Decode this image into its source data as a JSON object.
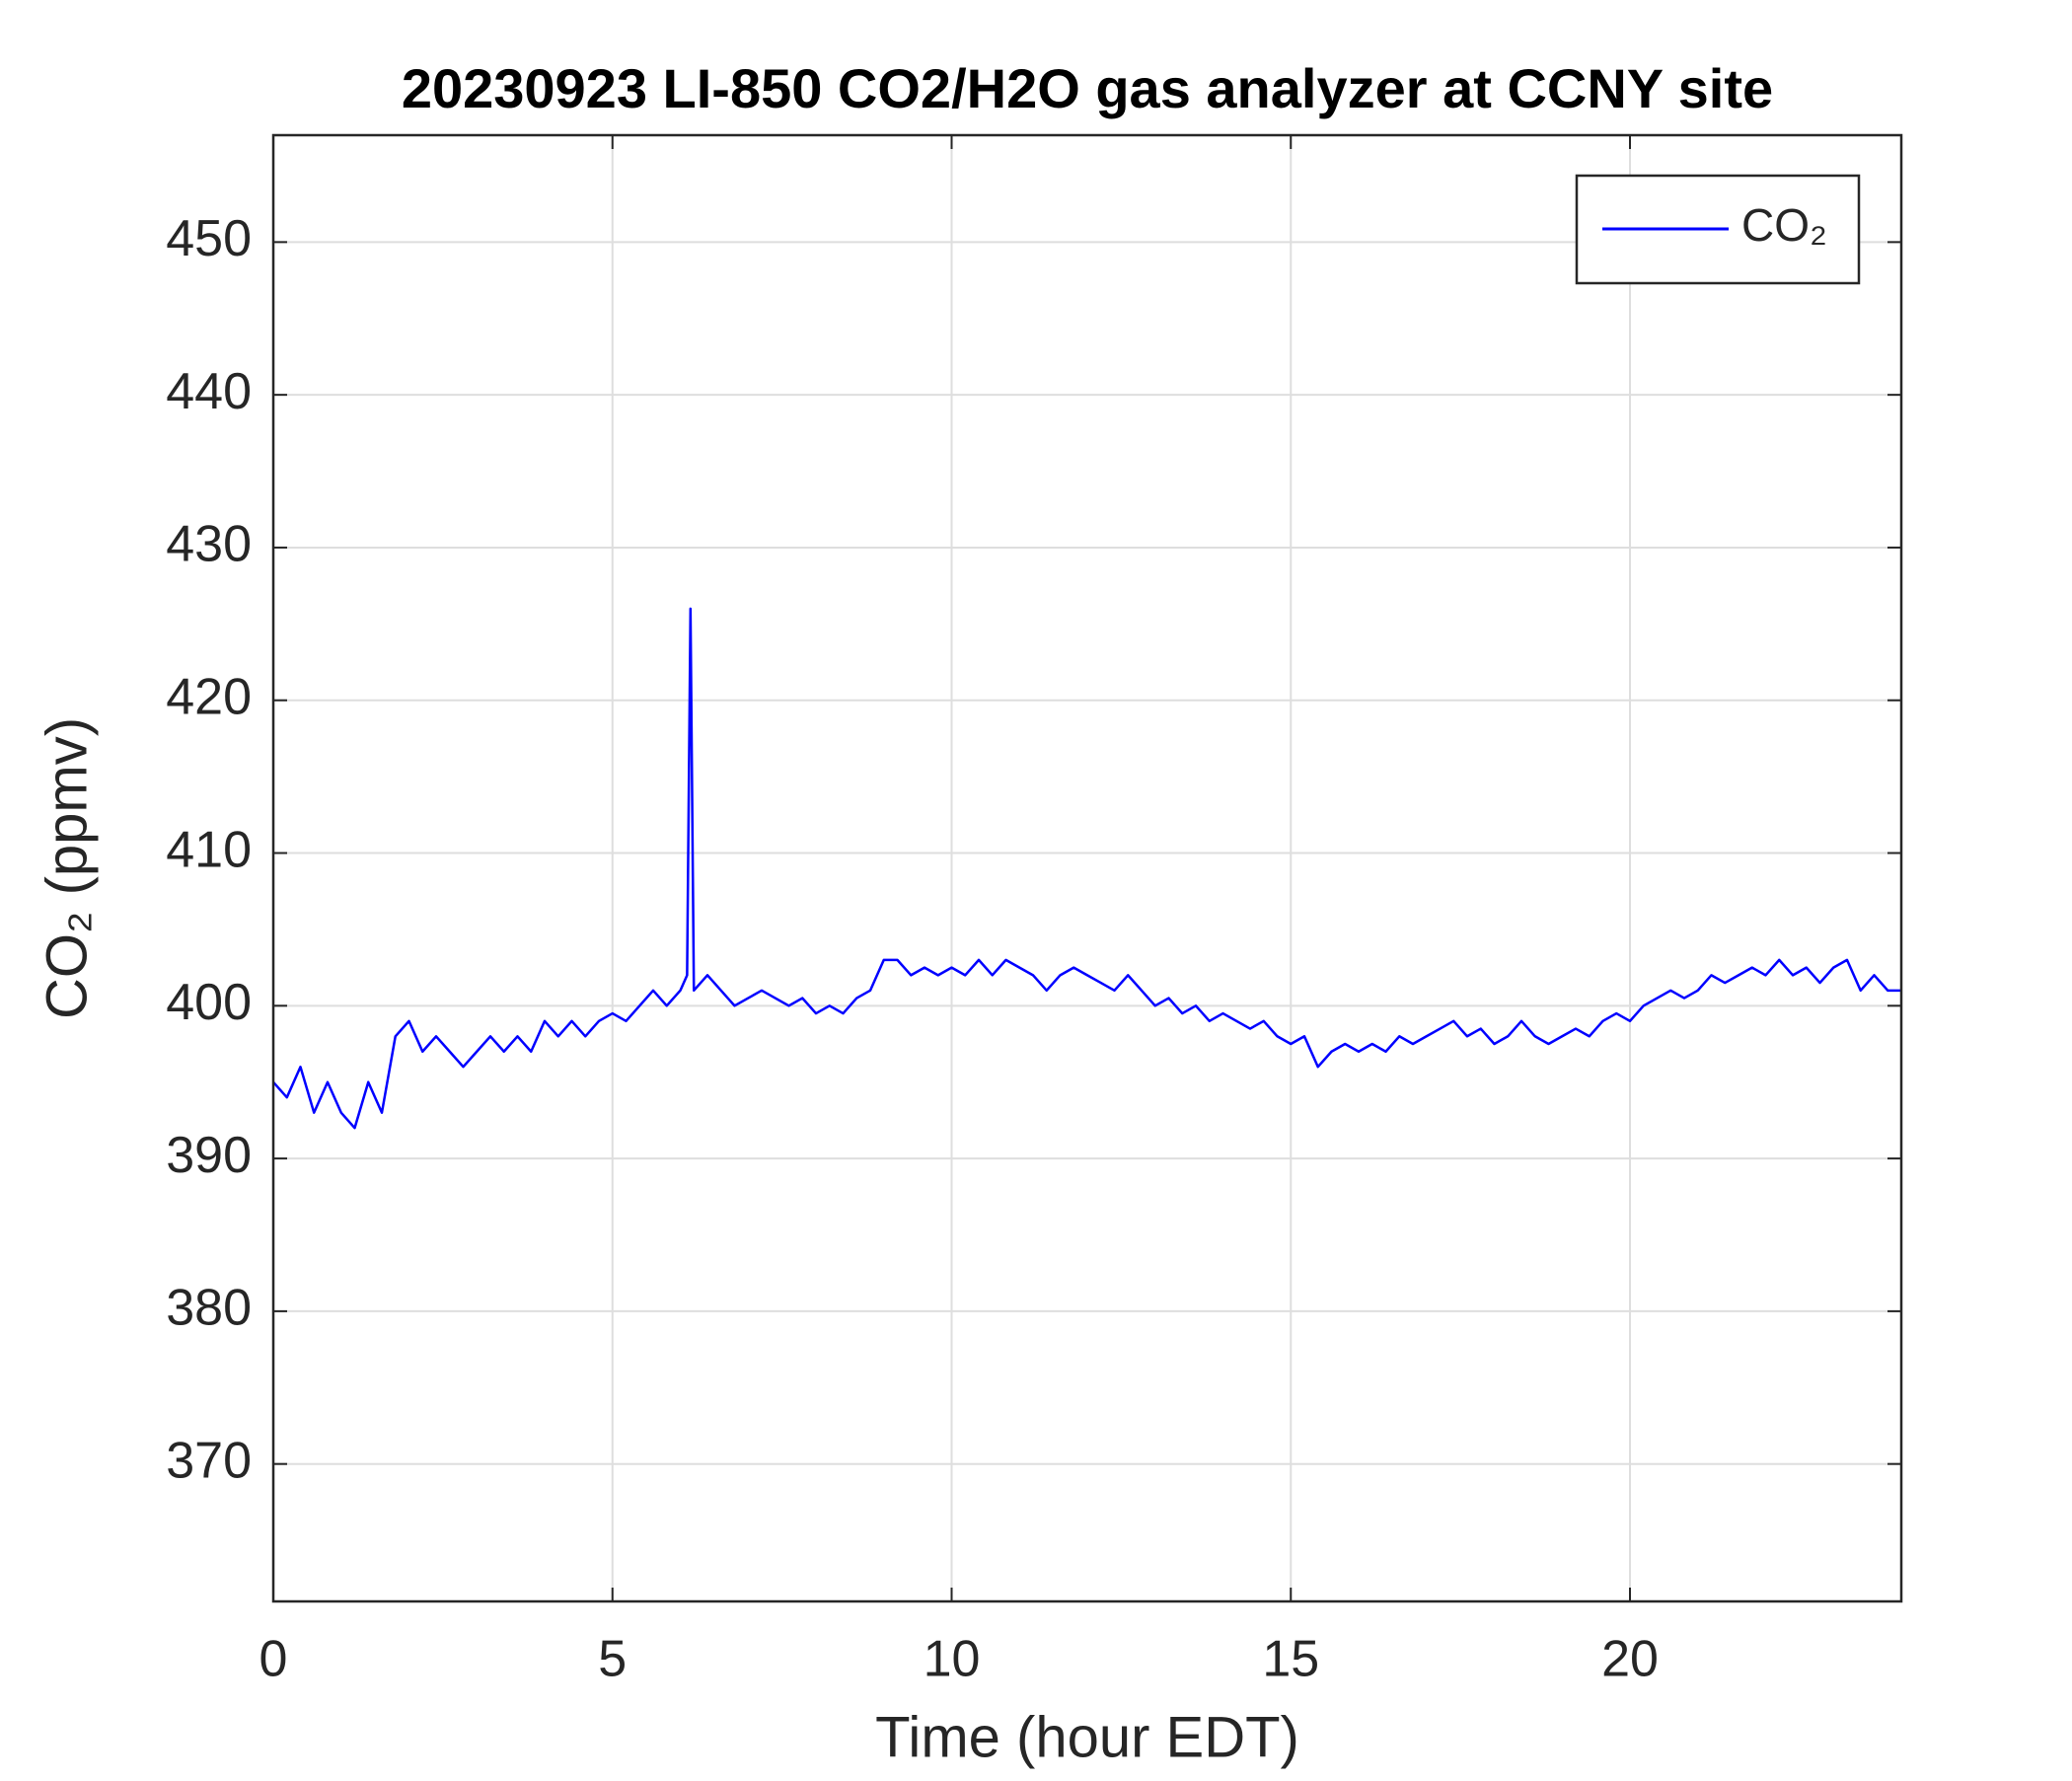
{
  "chart_data": {
    "type": "line",
    "title": "20230923 LI-850 CO2/H2O gas analyzer at CCNY site",
    "x_label": "Time (hour EDT)",
    "y_label": "CO₂ (ppmv)",
    "x": [
      0,
      0.2,
      0.4,
      0.6,
      0.8,
      1.0,
      1.2,
      1.4,
      1.6,
      1.8,
      2.0,
      2.2,
      2.4,
      2.6,
      2.8,
      3.0,
      3.2,
      3.4,
      3.6,
      3.8,
      4.0,
      4.2,
      4.4,
      4.6,
      4.8,
      5.0,
      5.2,
      5.4,
      5.6,
      5.8,
      6.0,
      6.1,
      6.15,
      6.2,
      6.4,
      6.6,
      6.8,
      7.0,
      7.2,
      7.4,
      7.6,
      7.8,
      8.0,
      8.2,
      8.4,
      8.6,
      8.8,
      9.0,
      9.2,
      9.4,
      9.6,
      9.8,
      10.0,
      10.2,
      10.4,
      10.6,
      10.8,
      11.0,
      11.2,
      11.4,
      11.6,
      11.8,
      12.0,
      12.2,
      12.4,
      12.6,
      12.8,
      13.0,
      13.2,
      13.4,
      13.6,
      13.8,
      14.0,
      14.2,
      14.4,
      14.6,
      14.8,
      15.0,
      15.2,
      15.4,
      15.6,
      15.8,
      16.0,
      16.2,
      16.4,
      16.6,
      16.8,
      17.0,
      17.2,
      17.4,
      17.6,
      17.8,
      18.0,
      18.2,
      18.4,
      18.6,
      18.8,
      19.0,
      19.2,
      19.4,
      19.6,
      19.8,
      20.0,
      20.2,
      20.4,
      20.6,
      20.8,
      21.0,
      21.2,
      21.4,
      21.6,
      21.8,
      22.0,
      22.2,
      22.4,
      22.6,
      22.8,
      23.0,
      23.2,
      23.4,
      23.6,
      23.8,
      24.0
    ],
    "series": [
      {
        "name": "CO₂",
        "color": "#0000ff",
        "values": [
          395,
          394,
          396,
          393,
          395,
          393,
          392,
          395,
          393,
          398,
          399,
          397,
          398,
          397,
          396,
          397,
          398,
          397,
          398,
          397,
          399,
          398,
          399,
          398,
          399,
          399.5,
          399,
          400,
          401,
          400,
          401,
          402,
          426,
          401,
          402,
          401,
          400,
          400.5,
          401,
          400.5,
          400,
          400.5,
          399.5,
          400,
          399.5,
          400.5,
          401,
          403,
          403,
          402,
          402.5,
          402,
          402.5,
          402,
          403,
          402,
          403,
          402.5,
          402,
          401,
          402,
          402.5,
          402,
          401.5,
          401,
          402,
          401,
          400,
          400.5,
          399.5,
          400,
          399,
          399.5,
          399,
          398.5,
          399,
          398,
          397.5,
          398,
          396,
          397,
          397.5,
          397,
          397.5,
          397,
          398,
          397.5,
          398,
          398.5,
          399,
          398,
          398.5,
          397.5,
          398,
          399,
          398,
          397.5,
          398,
          398.5,
          398,
          399,
          399.5,
          399,
          400,
          400.5,
          401,
          400.5,
          401,
          402,
          401.5,
          402,
          402.5,
          402,
          403,
          402,
          402.5,
          401.5,
          402.5,
          403,
          401,
          402,
          401,
          401
        ]
      }
    ],
    "xlim": [
      0,
      24
    ],
    "xticks": [
      0,
      5,
      10,
      15,
      20
    ],
    "ylim": [
      361,
      457
    ],
    "yticks": [
      370,
      380,
      390,
      400,
      410,
      420,
      430,
      440,
      450
    ],
    "grid": true,
    "legend": "upper right"
  }
}
